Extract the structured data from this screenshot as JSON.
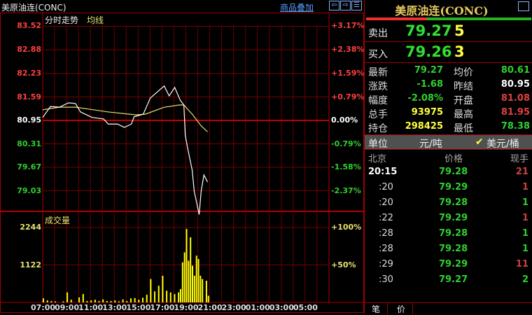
{
  "header": {
    "title": "美原油连(CONC)",
    "overlay_link": "商品叠加",
    "icons": [
      "arrow-left-icon",
      "arrow-right-icon",
      "layout-toggle-icon"
    ]
  },
  "chart_labels": {
    "intraday": "分时走势",
    "average": "均线",
    "volume": "成交量"
  },
  "colors": {
    "background": "#000000",
    "grid": "#7a0000",
    "up": "#ff4040",
    "down": "#30d030",
    "price_line": "#ffffff",
    "avg_line": "#e8e070",
    "volume": "#ffff00"
  },
  "chart_data": {
    "type": "line",
    "prev_settle": 80.95,
    "price_ticks": [
      {
        "v": 83.52,
        "pct": "+3.17%"
      },
      {
        "v": 82.88,
        "pct": "+2.38%"
      },
      {
        "v": 82.23,
        "pct": "+1.59%"
      },
      {
        "v": 81.59,
        "pct": "+0.79%"
      },
      {
        "v": 80.95,
        "pct": "0.00%"
      },
      {
        "v": 80.31,
        "pct": "-0.79%"
      },
      {
        "v": 79.67,
        "pct": "-1.58%"
      },
      {
        "v": 79.03,
        "pct": "-2.37%"
      }
    ],
    "volume_ticks": [
      {
        "v": 2244,
        "pct": "+100%"
      },
      {
        "v": 1122,
        "pct": "+50%"
      }
    ],
    "time_ticks": [
      "07:00",
      "09:00",
      "11:00",
      "13:00",
      "15:00",
      "17:00",
      "19:00",
      "21:00",
      "23:00",
      "01:00",
      "03:00",
      "05:00"
    ],
    "price": [
      [
        "07:00",
        81.03
      ],
      [
        "07:39",
        81.33
      ],
      [
        "08:24",
        81.31
      ],
      [
        "09:10",
        81.43
      ],
      [
        "09:45",
        81.41
      ],
      [
        "10:10",
        81.18
      ],
      [
        "11:09",
        81.03
      ],
      [
        "12:06",
        80.99
      ],
      [
        "12:30",
        80.85
      ],
      [
        "13:16",
        80.85
      ],
      [
        "13:51",
        80.76
      ],
      [
        "14:26",
        80.85
      ],
      [
        "14:40",
        81.05
      ],
      [
        "15:26",
        81.12
      ],
      [
        "16:01",
        81.56
      ],
      [
        "17:11",
        81.89
      ],
      [
        "17:36",
        81.62
      ],
      [
        "18:04",
        81.85
      ],
      [
        "18:32",
        81.5
      ],
      [
        "18:50",
        81.37
      ],
      [
        "18:57",
        80.55
      ],
      [
        "19:08",
        80.22
      ],
      [
        "19:32",
        79.59
      ],
      [
        "19:42",
        79.02
      ],
      [
        "20:07",
        78.38
      ],
      [
        "20:17",
        79.02
      ],
      [
        "20:31",
        79.46
      ],
      [
        "20:49",
        79.27
      ]
    ],
    "average": [
      [
        "07:00",
        81.24
      ],
      [
        "08:24",
        81.31
      ],
      [
        "09:45",
        81.31
      ],
      [
        "12:30",
        81.18
      ],
      [
        "14:50",
        81.1
      ],
      [
        "15:36",
        81.12
      ],
      [
        "17:11",
        81.31
      ],
      [
        "18:25",
        81.37
      ],
      [
        "18:50",
        81.37
      ],
      [
        "19:32",
        81.12
      ],
      [
        "20:17",
        80.8
      ],
      [
        "20:49",
        80.64
      ]
    ],
    "volume": [
      [
        "07:00",
        120
      ],
      [
        "07:20",
        60
      ],
      [
        "07:40",
        40
      ],
      [
        "08:00",
        30
      ],
      [
        "08:40",
        30
      ],
      [
        "09:00",
        300
      ],
      [
        "09:20",
        80
      ],
      [
        "10:00",
        150
      ],
      [
        "10:20",
        250
      ],
      [
        "10:40",
        40
      ],
      [
        "11:00",
        60
      ],
      [
        "11:20",
        80
      ],
      [
        "11:40",
        40
      ],
      [
        "12:00",
        90
      ],
      [
        "12:20",
        40
      ],
      [
        "12:40",
        40
      ],
      [
        "13:00",
        60
      ],
      [
        "13:20",
        30
      ],
      [
        "13:40",
        90
      ],
      [
        "14:00",
        40
      ],
      [
        "14:20",
        120
      ],
      [
        "14:40",
        130
      ],
      [
        "15:00",
        80
      ],
      [
        "15:20",
        140
      ],
      [
        "15:40",
        230
      ],
      [
        "16:00",
        700
      ],
      [
        "16:20",
        330
      ],
      [
        "16:40",
        500
      ],
      [
        "17:00",
        800
      ],
      [
        "17:20",
        350
      ],
      [
        "17:40",
        300
      ],
      [
        "18:00",
        250
      ],
      [
        "18:20",
        300
      ],
      [
        "18:30",
        400
      ],
      [
        "18:40",
        1200
      ],
      [
        "18:50",
        1500
      ],
      [
        "19:00",
        2200
      ],
      [
        "19:10",
        1250
      ],
      [
        "19:20",
        1950
      ],
      [
        "19:30",
        1100
      ],
      [
        "19:40",
        800
      ],
      [
        "19:50",
        1400
      ],
      [
        "20:00",
        1300
      ],
      [
        "20:10",
        800
      ],
      [
        "20:20",
        700
      ],
      [
        "20:40",
        650
      ],
      [
        "20:50",
        200
      ]
    ]
  },
  "quote": {
    "title": "美原油连(CONC)",
    "sell_label": "卖出",
    "sell_price": "79.27",
    "sell_qty": "5",
    "buy_label": "买入",
    "buy_price": "79.26",
    "buy_qty": "3",
    "buy_sell_ratio": 0.37,
    "stats": [
      {
        "k1": "最新",
        "v1": "79.27",
        "c1": "#30d030",
        "k2": "均价",
        "v2": "80.61",
        "c2": "#30d030"
      },
      {
        "k1": "涨跌",
        "v1": "-1.68",
        "c1": "#30d030",
        "k2": "昨结",
        "v2": "80.95",
        "c2": "#ffffff"
      },
      {
        "k1": "幅度",
        "v1": "-2.08%",
        "c1": "#30d030",
        "k2": "开盘",
        "v2": "81.08",
        "c2": "#e04040"
      },
      {
        "k1": "总手",
        "v1": "93975",
        "c1": "#ffff40",
        "k2": "最高",
        "v2": "81.95",
        "c2": "#e04040"
      },
      {
        "k1": "持仓",
        "v1": "298425",
        "c1": "#ffff40",
        "k2": "最低",
        "v2": "78.38",
        "c2": "#30d030"
      }
    ],
    "unit_label": "单位",
    "unit_cny": "元/吨",
    "unit_usd": "美元/桶",
    "unit_usd_checked": true
  },
  "ticks": {
    "headers": [
      "北京",
      "价格",
      "现手"
    ],
    "rows": [
      {
        "t": "20:15",
        "p": "79.28",
        "q": "21",
        "qc": "#d04040"
      },
      {
        "t": ":20",
        "p": "79.29",
        "q": "1",
        "qc": "#d04040"
      },
      {
        "t": ":20",
        "p": "79.28",
        "q": "1",
        "qc": "#30d030"
      },
      {
        "t": ":22",
        "p": "79.29",
        "q": "1",
        "qc": "#d04040"
      },
      {
        "t": ":28",
        "p": "79.28",
        "q": "1",
        "qc": "#30d030"
      },
      {
        "t": ":28",
        "p": "79.28",
        "q": "1",
        "qc": "#30d030"
      },
      {
        "t": ":29",
        "p": "79.29",
        "q": "11",
        "qc": "#d04040"
      },
      {
        "t": ":30",
        "p": "79.27",
        "q": "2",
        "qc": "#30d030"
      }
    ]
  },
  "tabs": [
    "笔",
    "价"
  ]
}
